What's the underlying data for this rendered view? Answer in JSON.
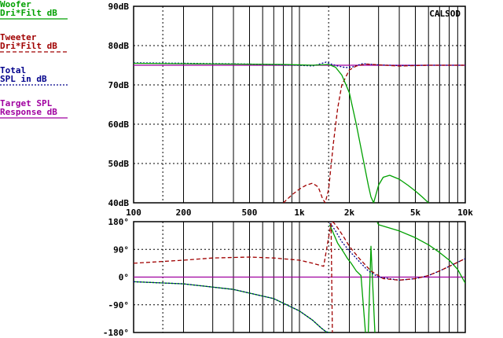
{
  "chart_data": [
    {
      "type": "line",
      "panel": "magnitude",
      "brand": "CALSOD",
      "xscale": "log",
      "xlim": [
        100,
        10000
      ],
      "ylim": [
        40,
        90
      ],
      "grid": true,
      "legend_position": "left",
      "x_tick_labels": [
        {
          "v": 100,
          "label": "100"
        },
        {
          "v": 200,
          "label": "200"
        },
        {
          "v": 500,
          "label": "500"
        },
        {
          "v": 1000,
          "label": "1k"
        },
        {
          "v": 2000,
          "label": "2k"
        },
        {
          "v": 5000,
          "label": "5k"
        },
        {
          "v": 10000,
          "label": "10k"
        }
      ],
      "y_tick_labels": [
        {
          "v": 90,
          "label": "90dB"
        },
        {
          "v": 80,
          "label": "80dB"
        },
        {
          "v": 70,
          "label": "70dB"
        },
        {
          "v": 60,
          "label": "60dB"
        },
        {
          "v": 50,
          "label": "50dB"
        },
        {
          "v": 40,
          "label": "40dB"
        }
      ],
      "series": [
        {
          "name": "Woofer Dri*Filt dB",
          "color": "#00a000",
          "dash": "solid",
          "x": [
            100,
            200,
            400,
            800,
            1200,
            1500,
            1650,
            1800,
            2000,
            2200,
            2400,
            2600,
            2700,
            2800,
            3000,
            3200,
            3500,
            4000,
            4500,
            5000,
            5500,
            6000
          ],
          "y": [
            75.5,
            75.4,
            75.3,
            75.2,
            75.0,
            75.2,
            74.5,
            72.5,
            68.0,
            60.0,
            52.0,
            44.5,
            41.5,
            40.0,
            44.5,
            46.5,
            47.0,
            46.0,
            44.5,
            43.0,
            41.5,
            40.0
          ]
        },
        {
          "name": "Tweeter Dri*Filt dB",
          "color": "#a00000",
          "dash": "dashed",
          "x": [
            800,
            900,
            1000,
            1100,
            1200,
            1300,
            1380,
            1430,
            1500,
            1600,
            1700,
            1800,
            2000,
            2200,
            2500,
            3000,
            4000,
            6000,
            8000,
            10000
          ],
          "y": [
            40.0,
            42.0,
            43.5,
            44.5,
            45.0,
            44.0,
            41.0,
            40.0,
            43.5,
            55.0,
            64.0,
            70.0,
            73.8,
            74.8,
            75.3,
            75.1,
            74.8,
            75.0,
            75.0,
            75.0
          ]
        },
        {
          "name": "Total SPL in dB",
          "color": "#00008b",
          "dash": "dotted",
          "x": [
            100,
            200,
            500,
            1000,
            1200,
            1450,
            1550,
            1700,
            1900,
            2100,
            2400,
            3000,
            4000,
            6000,
            10000
          ],
          "y": [
            75.6,
            75.5,
            75.3,
            75.0,
            74.8,
            75.8,
            75.3,
            74.8,
            74.4,
            74.6,
            75.4,
            75.1,
            74.9,
            75.0,
            75.0
          ]
        },
        {
          "name": "Target SPL Response dB",
          "color": "#a000a0",
          "dash": "solid",
          "x": [
            100,
            10000
          ],
          "y": [
            75.0,
            75.0
          ]
        }
      ]
    },
    {
      "type": "line",
      "panel": "phase",
      "xscale": "log",
      "xlim": [
        100,
        10000
      ],
      "ylim": [
        -180,
        180
      ],
      "grid": true,
      "y_tick_labels": [
        {
          "v": 180,
          "label": "180°"
        },
        {
          "v": 90,
          "label": "90°"
        },
        {
          "v": 0,
          "label": "0°"
        },
        {
          "v": -90,
          "label": "-90°"
        },
        {
          "v": -180,
          "label": "-180°"
        }
      ],
      "series": [
        {
          "name": "Woofer",
          "color": "#00a000",
          "dash": "solid",
          "segments": [
            {
              "x": [
                100,
                200,
                400,
                700,
                1000,
                1200,
                1350,
                1450,
                1520
              ],
              "y": [
                -15,
                -22,
                -40,
                -70,
                -110,
                -140,
                -165,
                -178,
                -180
              ]
            },
            {
              "x": [
                1520,
                1550,
                1700,
                1850,
                1950,
                2050,
                2200,
                2350,
                2500
              ],
              "y": [
                170,
                160,
                110,
                80,
                60,
                45,
                20,
                5,
                -180
              ]
            },
            {
              "x": [
                2600,
                2700,
                2800,
                2850
              ],
              "y": [
                -180,
                100,
                -90,
                -180
              ]
            },
            {
              "x": [
                2950,
                3000,
                4000,
                5000,
                6000,
                7000,
                8000,
                9000,
                10000
              ],
              "y": [
                178,
                170,
                150,
                128,
                105,
                80,
                55,
                25,
                -20
              ]
            }
          ]
        },
        {
          "name": "Tweeter",
          "color": "#a00000",
          "dash": "dashed",
          "segments": [
            {
              "x": [
                100,
                200,
                300,
                500,
                700,
                1000,
                1200,
                1400,
                1550
              ],
              "y": [
                45,
                55,
                62,
                65,
                62,
                55,
                45,
                35,
                175
              ]
            },
            {
              "x": [
                1550,
                1580
              ],
              "y": [
                175,
                -180
              ]
            },
            {
              "x": [
                1580,
                1620,
                1700,
                1850,
                2000,
                2300,
                2700,
                3200,
                4000,
                5000,
                6000,
                7000,
                8000,
                10000
              ],
              "y": [
                180,
                175,
                160,
                130,
                100,
                60,
                20,
                -5,
                -10,
                -5,
                5,
                20,
                35,
                60
              ]
            }
          ]
        },
        {
          "name": "Total",
          "color": "#00008b",
          "dash": "dotted",
          "segments": [
            {
              "x": [
                100,
                200,
                400,
                700,
                1000,
                1200,
                1350,
                1450,
                1520
              ],
              "y": [
                -15,
                -22,
                -40,
                -70,
                -110,
                -140,
                -165,
                -178,
                -180
              ]
            },
            {
              "x": [
                1520,
                1560,
                1650,
                1800,
                2000,
                2300,
                2600,
                3000,
                4000,
                5000,
                6000,
                7000,
                8000,
                10000
              ],
              "y": [
                175,
                170,
                150,
                115,
                85,
                50,
                20,
                0,
                -10,
                -5,
                5,
                20,
                35,
                60
              ]
            }
          ]
        },
        {
          "name": "Target",
          "color": "#a000a0",
          "dash": "solid",
          "segments": [
            {
              "x": [
                100,
                10000
              ],
              "y": [
                0,
                0
              ]
            }
          ]
        }
      ]
    }
  ],
  "legend": [
    {
      "line1": "Woofer",
      "line2": "Dri*Filt dB",
      "color": "#00a000",
      "dash": "solid"
    },
    {
      "line1": "Tweeter",
      "line2": "Dri*Filt dB",
      "color": "#a00000",
      "dash": "dashed"
    },
    {
      "line1": "Total",
      "line2": "SPL in dB",
      "color": "#00008b",
      "dash": "dotted"
    },
    {
      "line1": "Target SPL",
      "line2": "Response dB",
      "color": "#a000a0",
      "dash": "solid"
    }
  ]
}
